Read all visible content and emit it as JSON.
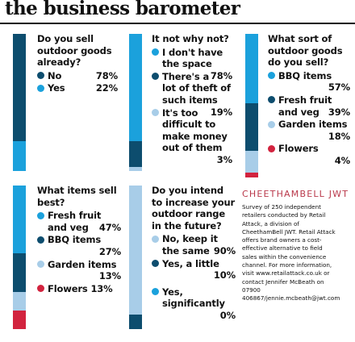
{
  "title": "the business barometer",
  "colors": {
    "dark": "#0d4d6e",
    "bright": "#1ba1dc",
    "light": "#a8cde8",
    "red": "#d2233e"
  },
  "chart_data": [
    {
      "type": "bar",
      "title": "Do you sell outdoor goods already?",
      "categories": [
        "No",
        "Yes"
      ],
      "values": [
        78,
        22
      ],
      "labels": [
        "78%",
        "22%"
      ],
      "colors": [
        "dark",
        "bright"
      ]
    },
    {
      "type": "bar",
      "title": "It not why not?",
      "categories": [
        "I don't have the space",
        "There's a lot of theft of such items",
        "It's too difficult to make money out of them"
      ],
      "values": [
        78,
        19,
        3
      ],
      "labels": [
        "78%",
        "19%",
        "3%"
      ],
      "colors": [
        "bright",
        "dark",
        "light"
      ]
    },
    {
      "type": "bar",
      "title": "What sort of outdoor goods do you sell?",
      "categories": [
        "BBQ items",
        "Fresh fruit and veg",
        "Garden items",
        "Flowers"
      ],
      "values": [
        57,
        39,
        18,
        4
      ],
      "labels": [
        "57%",
        "39%",
        "18%",
        "4%"
      ],
      "colors": [
        "bright",
        "dark",
        "light",
        "red"
      ]
    },
    {
      "type": "bar",
      "title": "What items sell best?",
      "categories": [
        "Fresh fruit and veg",
        "BBQ items",
        "Garden items",
        "Flowers"
      ],
      "values": [
        47,
        27,
        13,
        13
      ],
      "labels": [
        "47%",
        "27%",
        "13%",
        "13%"
      ],
      "colors": [
        "bright",
        "dark",
        "light",
        "red"
      ]
    },
    {
      "type": "bar",
      "title": "Do you intend to increase your outdoor range in the future?",
      "categories": [
        "No, keep it the same",
        "Yes, a little",
        "Yes, significantly"
      ],
      "values": [
        90,
        10,
        0
      ],
      "labels": [
        "90%",
        "10%",
        "0%"
      ],
      "colors": [
        "light",
        "dark",
        "bright"
      ]
    }
  ],
  "brand": "CHEETHAMBELL JWT",
  "fine_print": "Survey of 250 independent retailers conducted by Retail Attack, a division of CheethamBell JWT. Retail Attack offers brand owners a cost-effective alternative to field sales within the convenience channel. For more information, visit www.retailattack.co.uk or contact Jennifer McBeath on 07900 406867/jennie.mcbeath@jwt.com"
}
